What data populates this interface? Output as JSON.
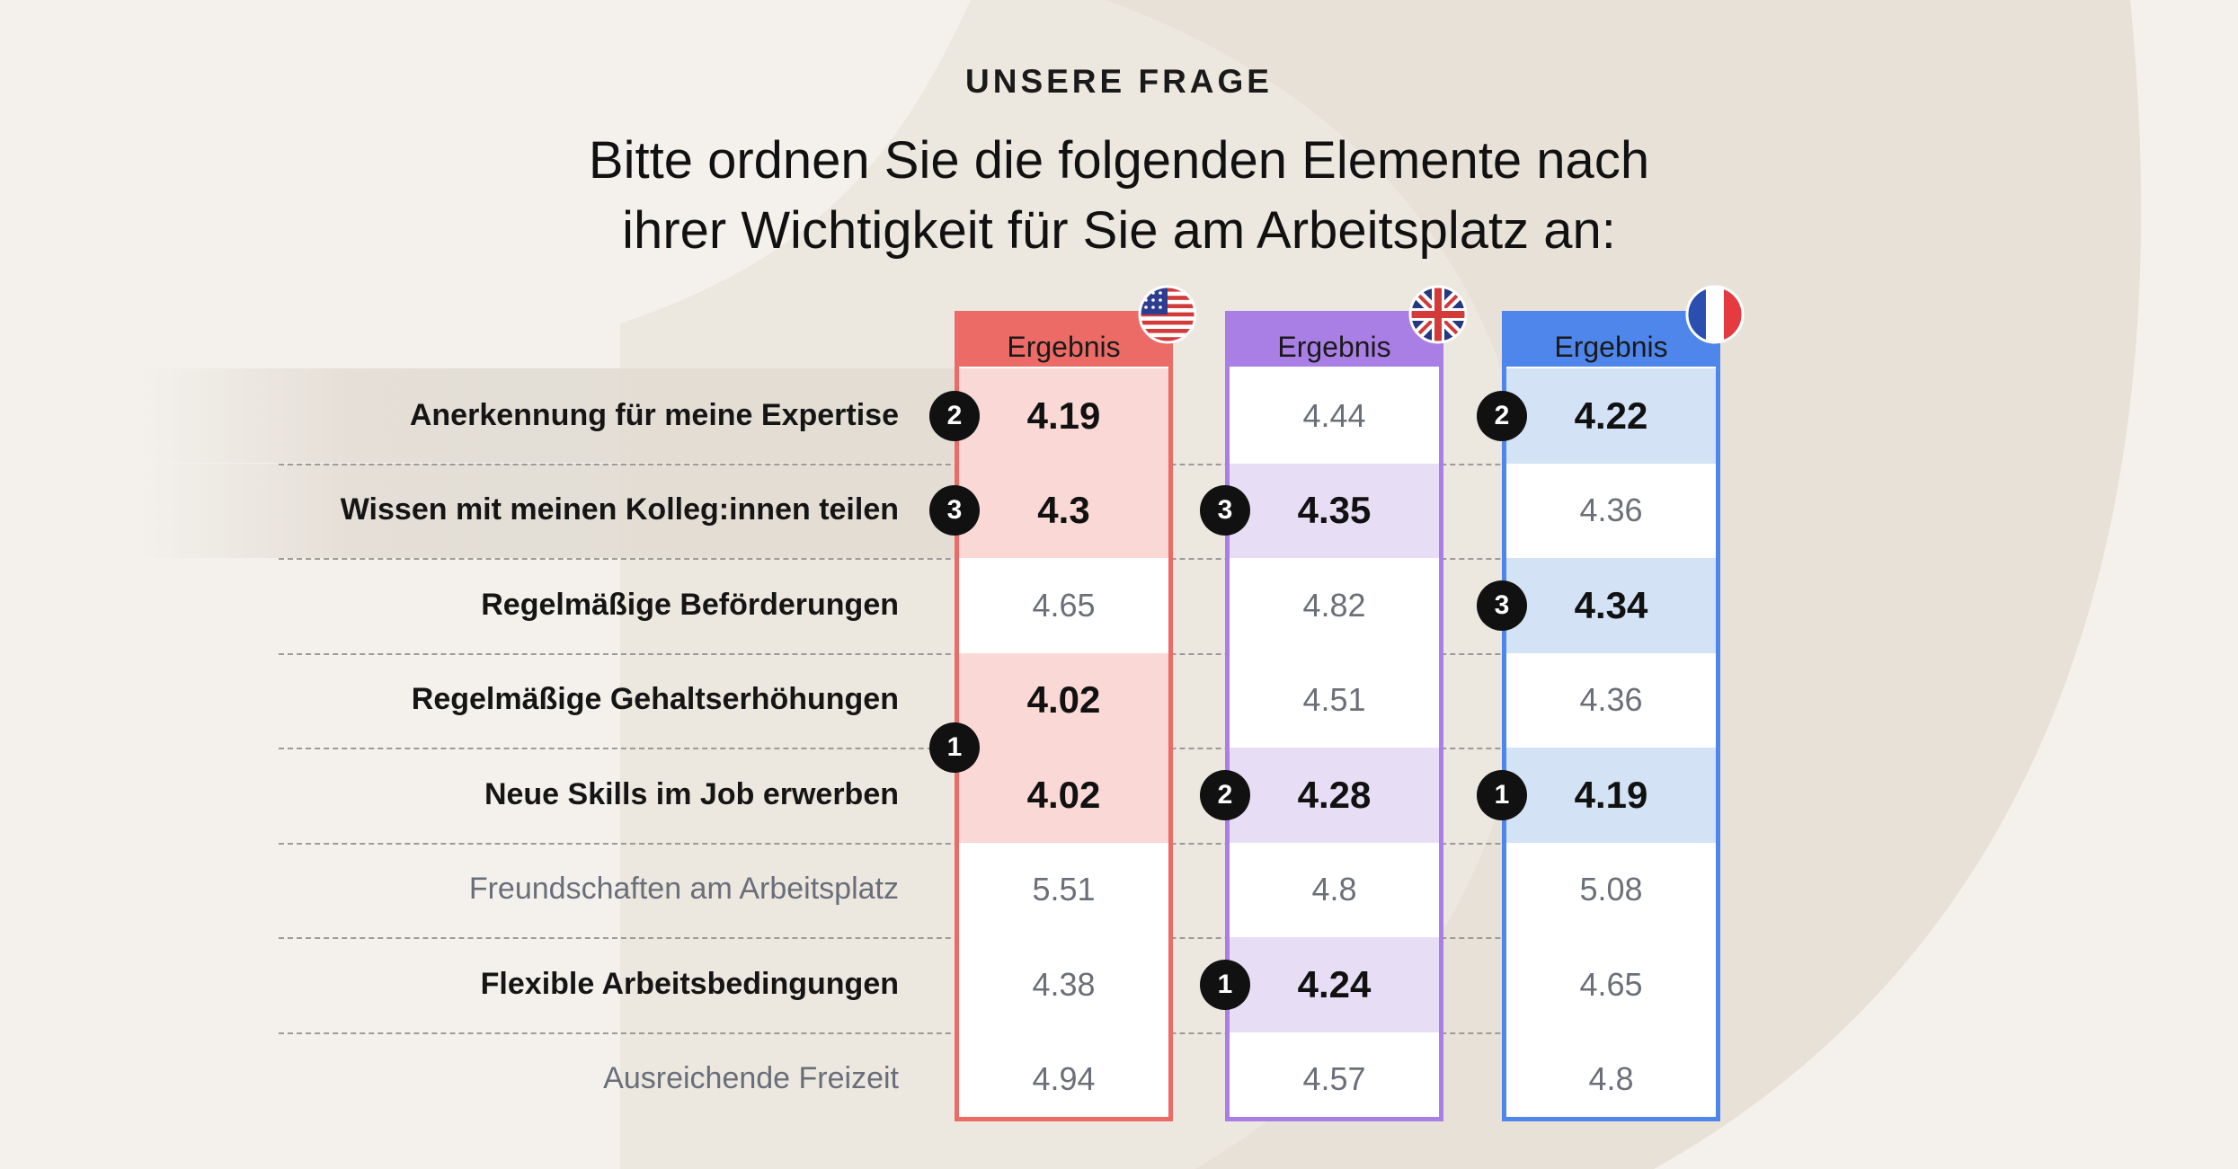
{
  "kicker": "UNSERE FRAGE",
  "title_lines": [
    "Bitte ordnen Sie die folgenden Elemente nach",
    "ihrer Wichtigkeit für Sie am Arbeitsplatz an:"
  ],
  "colors": {
    "us": "#ec6b66",
    "us_fill": "#f9d8d5",
    "uk": "#a97fe6",
    "uk_fill": "#e7def5",
    "fr": "#4f86ec",
    "fr_fill": "#d3e2f5"
  },
  "chart_data": {
    "type": "table",
    "rows": [
      "Anerkennung für meine Expertise",
      "Wissen mit meinen Kolleg:innen teilen",
      "Regelmäßige Beförderungen",
      "Regelmäßige Gehaltserhöhungen",
      "Neue Skills im Job erwerben",
      "Freundschaften am Arbeitsplatz",
      "Flexible Arbeitsbedingungen",
      "Ausreichende Freizeit"
    ],
    "row_bold": [
      true,
      true,
      true,
      true,
      true,
      false,
      true,
      false
    ],
    "row_highlighted": [
      true,
      true,
      false,
      false,
      false,
      false,
      false,
      false
    ],
    "columns": [
      {
        "header": "Ergebnis",
        "flag": "us-flag-icon",
        "color_key": "us",
        "values": [
          "4.19",
          "4.3",
          "4.65",
          "4.02",
          "4.02",
          "5.51",
          "4.38",
          "4.94"
        ],
        "highlighted": [
          true,
          true,
          false,
          true,
          true,
          false,
          false,
          false
        ],
        "ranks": [
          {
            "rank": "2",
            "row": 0
          },
          {
            "rank": "3",
            "row": 1
          },
          {
            "rank": "1",
            "row": 3.5
          }
        ]
      },
      {
        "header": "Ergebnis",
        "flag": "uk-flag-icon",
        "color_key": "uk",
        "values": [
          "4.44",
          "4.35",
          "4.82",
          "4.51",
          "4.28",
          "4.8",
          "4.24",
          "4.57"
        ],
        "highlighted": [
          false,
          true,
          false,
          false,
          true,
          false,
          true,
          false
        ],
        "ranks": [
          {
            "rank": "3",
            "row": 1
          },
          {
            "rank": "2",
            "row": 4
          },
          {
            "rank": "1",
            "row": 6
          }
        ]
      },
      {
        "header": "Ergebnis",
        "flag": "fr-flag-icon",
        "color_key": "fr",
        "values": [
          "4.22",
          "4.36",
          "4.34",
          "4.36",
          "4.19",
          "5.08",
          "4.65",
          "4.8"
        ],
        "highlighted": [
          true,
          false,
          true,
          false,
          true,
          false,
          false,
          false
        ],
        "ranks": [
          {
            "rank": "2",
            "row": 0
          },
          {
            "rank": "3",
            "row": 2
          },
          {
            "rank": "1",
            "row": 4
          }
        ]
      }
    ]
  }
}
